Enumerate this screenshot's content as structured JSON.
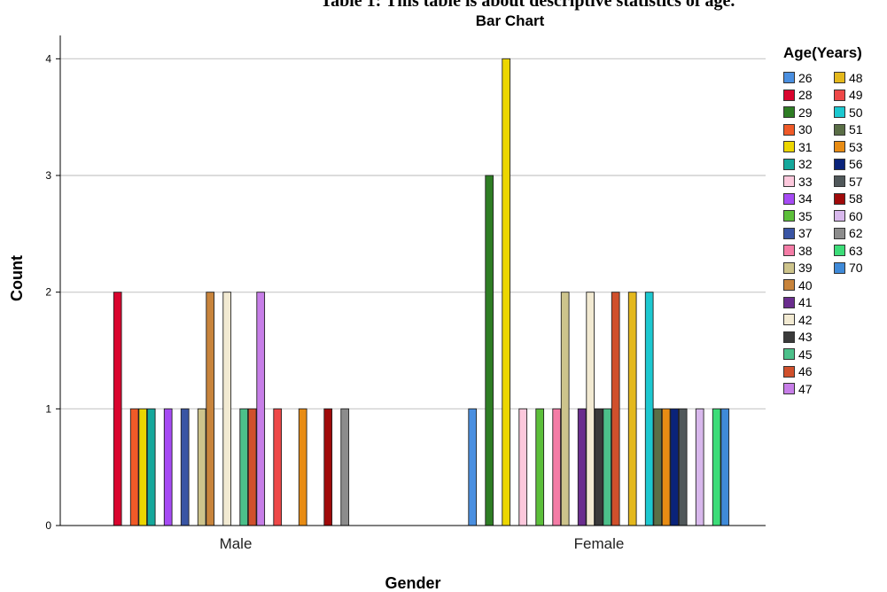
{
  "caption": "Table 1: This table is about descriptive statistics of age.",
  "chart_data": {
    "type": "bar",
    "title": "Bar Chart",
    "xlabel": "Gender",
    "ylabel": "Count",
    "ylim": [
      0,
      4.2
    ],
    "yticks": [
      0,
      1,
      2,
      3,
      4
    ],
    "grid": true,
    "legend": {
      "title": "Age(Years)",
      "placement": "right"
    },
    "categories": [
      "Male",
      "Female"
    ],
    "series": [
      {
        "name": "26",
        "color": "#4a8fe0",
        "values": [
          null,
          1
        ]
      },
      {
        "name": "28",
        "color": "#d9042e",
        "values": [
          2,
          null
        ]
      },
      {
        "name": "29",
        "color": "#2e7d24",
        "values": [
          null,
          3
        ]
      },
      {
        "name": "30",
        "color": "#f05a28",
        "values": [
          1,
          null
        ]
      },
      {
        "name": "31",
        "color": "#ecd600",
        "values": [
          1,
          4
        ]
      },
      {
        "name": "32",
        "color": "#15a89c",
        "values": [
          1,
          null
        ]
      },
      {
        "name": "33",
        "color": "#fcc8dc",
        "values": [
          null,
          1
        ]
      },
      {
        "name": "34",
        "color": "#a64bf4",
        "values": [
          1,
          null
        ]
      },
      {
        "name": "35",
        "color": "#5cbf3a",
        "values": [
          null,
          1
        ]
      },
      {
        "name": "37",
        "color": "#3a55a4",
        "values": [
          1,
          null
        ]
      },
      {
        "name": "38",
        "color": "#f47ca6",
        "values": [
          null,
          1
        ]
      },
      {
        "name": "39",
        "color": "#cdc48c",
        "values": [
          1,
          2
        ]
      },
      {
        "name": "40",
        "color": "#c8843c",
        "values": [
          2,
          null
        ]
      },
      {
        "name": "41",
        "color": "#6a2d8e",
        "values": [
          null,
          1
        ]
      },
      {
        "name": "42",
        "color": "#f2ead2",
        "values": [
          2,
          2
        ]
      },
      {
        "name": "43",
        "color": "#3a3a3a",
        "values": [
          null,
          1
        ]
      },
      {
        "name": "45",
        "color": "#4cc08a",
        "values": [
          1,
          1
        ]
      },
      {
        "name": "46",
        "color": "#d0502c",
        "values": [
          1,
          2
        ]
      },
      {
        "name": "47",
        "color": "#c77ee8",
        "values": [
          2,
          null
        ]
      },
      {
        "name": "48",
        "color": "#e4b81c",
        "values": [
          null,
          2
        ]
      },
      {
        "name": "49",
        "color": "#ee4848",
        "values": [
          1,
          null
        ]
      },
      {
        "name": "50",
        "color": "#1cc8d0",
        "values": [
          null,
          2
        ]
      },
      {
        "name": "51",
        "color": "#5a6e46",
        "values": [
          null,
          1
        ]
      },
      {
        "name": "53",
        "color": "#e88c14",
        "values": [
          1,
          1
        ]
      },
      {
        "name": "56",
        "color": "#0a237a",
        "values": [
          null,
          1
        ]
      },
      {
        "name": "57",
        "color": "#50585a",
        "values": [
          null,
          1
        ]
      },
      {
        "name": "58",
        "color": "#a00a0a",
        "values": [
          1,
          null
        ]
      },
      {
        "name": "60",
        "color": "#d8b8ec",
        "values": [
          null,
          1
        ]
      },
      {
        "name": "62",
        "color": "#8c8c8c",
        "values": [
          1,
          null
        ]
      },
      {
        "name": "63",
        "color": "#3cdc78",
        "values": [
          null,
          1
        ]
      },
      {
        "name": "70",
        "color": "#3f8ad8",
        "values": [
          null,
          1
        ]
      }
    ]
  }
}
